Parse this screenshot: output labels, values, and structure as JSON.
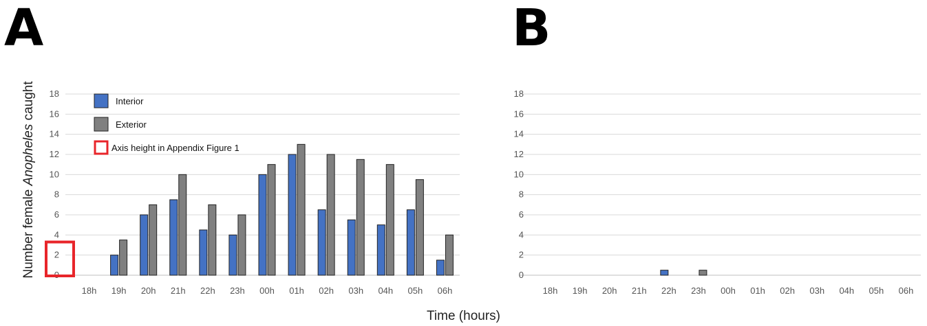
{
  "panels": {
    "left_label": "A",
    "right_label": "B"
  },
  "axis_labels": {
    "y_prefix": "Number female ",
    "y_italic": "Anopheles",
    "y_suffix": " caught",
    "x": "Time (hours)"
  },
  "legend": {
    "interior": "Interior",
    "exterior": "Exterior",
    "highlight": "Axis height in Appendix Figure 1"
  },
  "colors": {
    "interior": "#4472C4",
    "exterior": "#808080",
    "grid": "#d9d9d9",
    "highlight": "#e8252a"
  },
  "chart_data": [
    {
      "type": "bar",
      "panel": "A",
      "categories": [
        "18h",
        "19h",
        "20h",
        "21h",
        "22h",
        "23h",
        "00h",
        "01h",
        "02h",
        "03h",
        "04h",
        "05h",
        "06h"
      ],
      "series": [
        {
          "name": "Interior",
          "values": [
            0,
            2,
            6,
            7.5,
            4.5,
            4,
            10,
            12,
            6.5,
            5.5,
            5,
            6.5,
            1.5
          ]
        },
        {
          "name": "Exterior",
          "values": [
            0,
            3.5,
            7,
            10,
            7,
            6,
            11,
            13,
            12,
            11.5,
            11,
            9.5,
            4
          ]
        }
      ],
      "xlabel": "Time (hours)",
      "ylabel": "Number female Anopheles caught",
      "ylim": [
        0,
        18
      ],
      "yticks": [
        0,
        2,
        4,
        6,
        8,
        10,
        12,
        14,
        16,
        18
      ],
      "grid": true,
      "legend": "top-left",
      "highlight_box_range": [
        0,
        3.3
      ]
    },
    {
      "type": "bar",
      "panel": "B",
      "categories": [
        "18h",
        "19h",
        "20h",
        "21h",
        "22h",
        "23h",
        "00h",
        "01h",
        "02h",
        "03h",
        "04h",
        "05h",
        "06h"
      ],
      "series": [
        {
          "name": "Interior",
          "values": [
            0,
            0,
            0,
            0,
            0.5,
            0,
            0,
            0,
            0,
            0,
            0,
            0,
            0
          ]
        },
        {
          "name": "Exterior",
          "values": [
            0,
            0,
            0,
            0,
            0,
            0.5,
            0,
            0,
            0,
            0,
            0,
            0,
            0
          ]
        }
      ],
      "xlabel": "Time (hours)",
      "ylim": [
        0,
        18
      ],
      "yticks": [
        0,
        2,
        4,
        6,
        8,
        10,
        12,
        14,
        16,
        18
      ],
      "grid": true
    }
  ]
}
